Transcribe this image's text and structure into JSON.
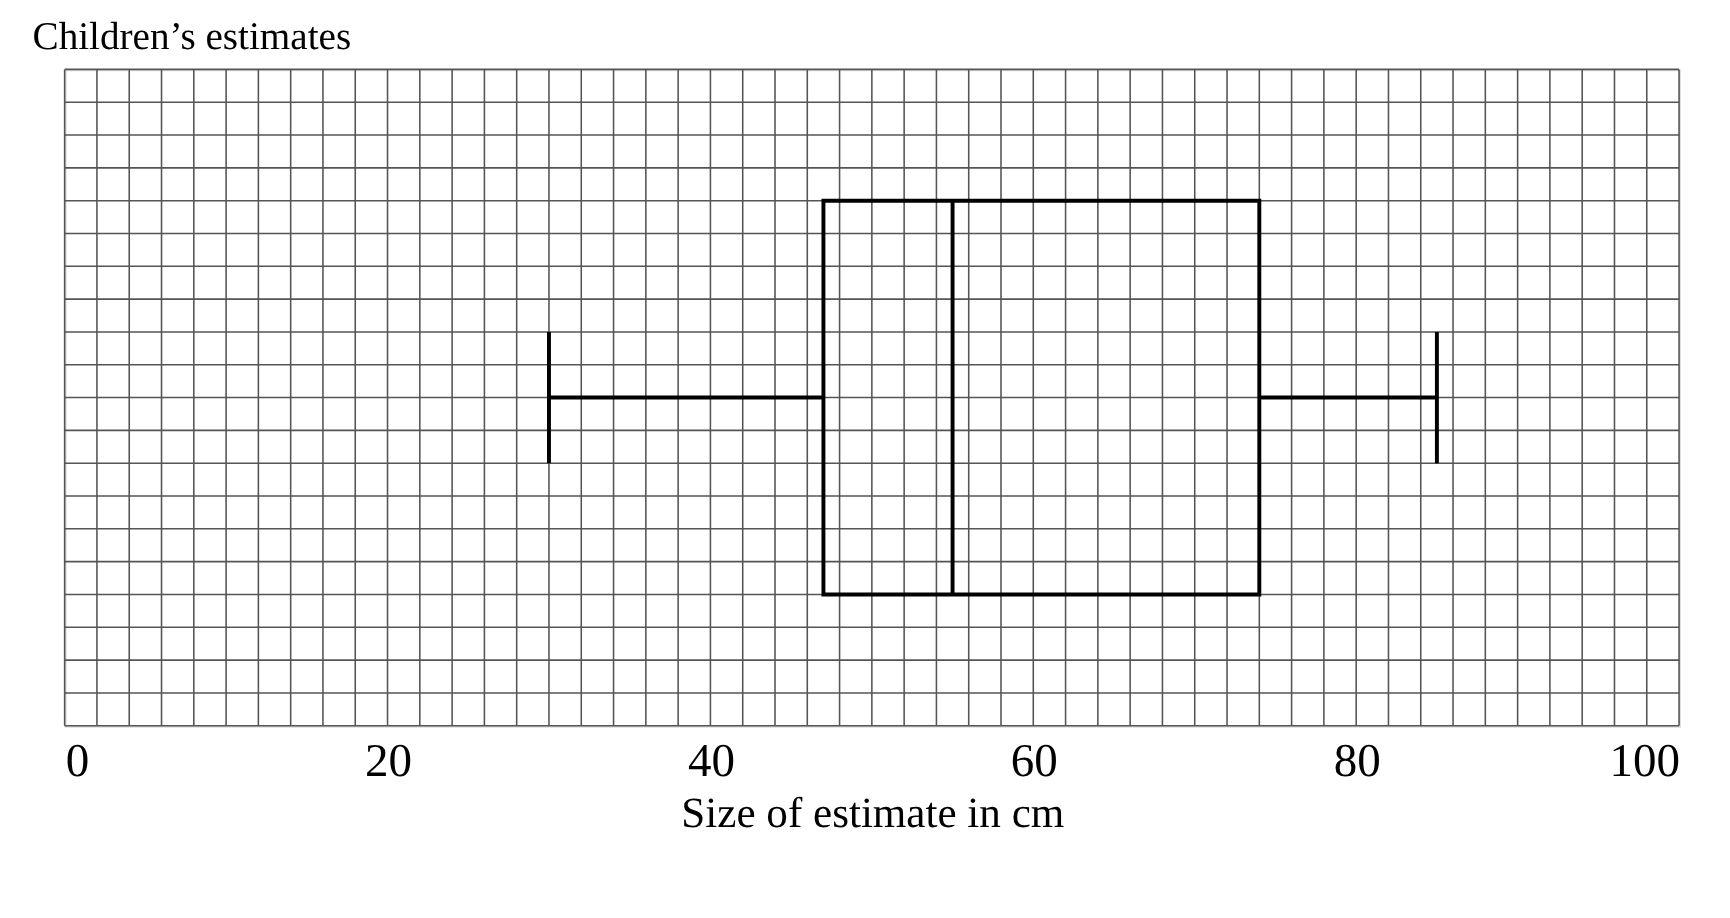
{
  "chart_data": {
    "type": "box",
    "orientation": "horizontal",
    "title": "Children’s estimates",
    "xlabel": "Size of estimate in cm",
    "categories": [
      null
    ],
    "color": "#000000",
    "boxes": [
      {
        "low": 30,
        "q1": 47,
        "median": 55,
        "q3": 74,
        "high": 85
      }
    ],
    "xlim": [
      0,
      100
    ],
    "xticks": [
      0,
      {
        "value": 2,
        "label": null
      },
      {
        "value": 4,
        "label": null
      },
      {
        "value": 6,
        "label": null
      },
      {
        "value": 8,
        "label": null
      },
      {
        "value": 10,
        "label": null
      },
      {
        "value": 12,
        "label": null
      },
      {
        "value": 14,
        "label": null
      },
      {
        "value": 16,
        "label": null
      },
      {
        "value": 18,
        "label": null
      },
      20,
      {
        "value": 22,
        "label": null
      },
      {
        "value": 24,
        "label": null
      },
      {
        "value": 26,
        "label": null
      },
      {
        "value": 28,
        "label": null
      },
      {
        "value": 30,
        "label": null
      },
      {
        "value": 32,
        "label": null
      },
      {
        "value": 34,
        "label": null
      },
      {
        "value": 36,
        "label": null
      },
      {
        "value": 38,
        "label": null
      },
      40,
      {
        "value": 42,
        "label": null
      },
      {
        "value": 44,
        "label": null
      },
      {
        "value": 46,
        "label": null
      },
      {
        "value": 48,
        "label": null
      },
      {
        "value": 50,
        "label": null
      },
      {
        "value": 52,
        "label": null
      },
      {
        "value": 54,
        "label": null
      },
      {
        "value": 56,
        "label": null
      },
      {
        "value": 58,
        "label": null
      },
      60,
      {
        "value": 62,
        "label": null
      },
      {
        "value": 64,
        "label": null
      },
      {
        "value": 66,
        "label": null
      },
      {
        "value": 68,
        "label": null
      },
      {
        "value": 70,
        "label": null
      },
      {
        "value": 72,
        "label": null
      },
      {
        "value": 74,
        "label": null
      },
      {
        "value": 76,
        "label": null
      },
      {
        "value": 78,
        "label": null
      },
      80,
      {
        "value": 82,
        "label": null
      },
      {
        "value": 84,
        "label": null
      },
      {
        "value": 86,
        "label": null
      },
      {
        "value": 88,
        "label": null
      },
      {
        "value": 90,
        "label": null
      },
      {
        "value": 92,
        "label": null
      },
      {
        "value": 94,
        "label": null
      },
      {
        "value": 96,
        "label": null
      },
      {
        "value": 98,
        "label": null
      },
      100
    ],
    "grid": true,
    "tick_labels": "x"
  }
}
